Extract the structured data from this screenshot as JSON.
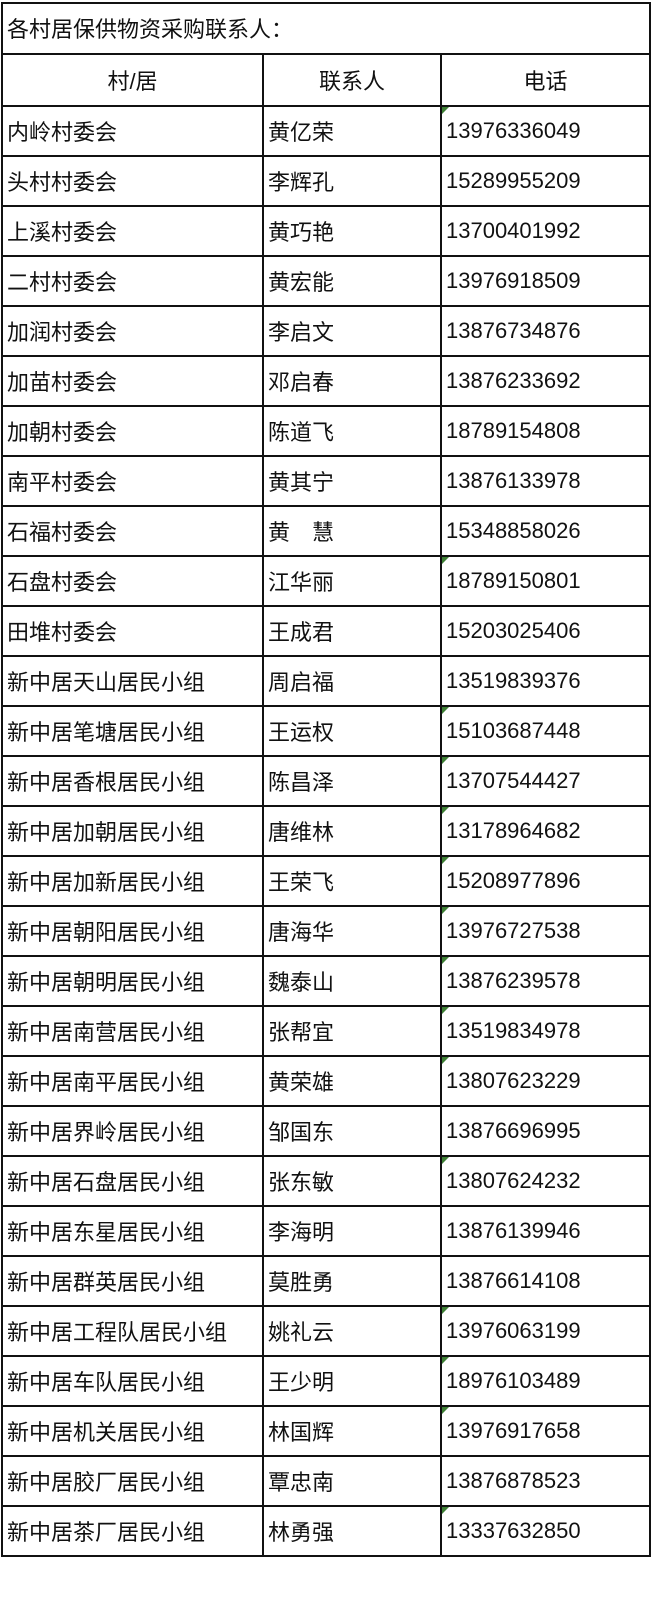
{
  "title": "各村居保供物资采购联系人：",
  "columns": [
    "村/居",
    "联系人",
    "电话"
  ],
  "flag_color": "#3d7f34",
  "rows": [
    {
      "unit": "内岭村委会",
      "contact": "黄亿荣",
      "phone": "13976336049",
      "flag": true
    },
    {
      "unit": "头村村委会",
      "contact": "李辉孔",
      "phone": "15289955209",
      "flag": false
    },
    {
      "unit": "上溪村委会",
      "contact": "黄巧艳",
      "phone": "13700401992",
      "flag": false
    },
    {
      "unit": "二村村委会",
      "contact": "黄宏能",
      "phone": "13976918509",
      "flag": false
    },
    {
      "unit": "加润村委会",
      "contact": "李启文",
      "phone": "13876734876",
      "flag": false
    },
    {
      "unit": "加苗村委会",
      "contact": "邓启春",
      "phone": "13876233692",
      "flag": false
    },
    {
      "unit": "加朝村委会",
      "contact": "陈道飞",
      "phone": "18789154808",
      "flag": false
    },
    {
      "unit": "南平村委会",
      "contact": "黄其宁",
      "phone": "13876133978",
      "flag": false
    },
    {
      "unit": "石福村委会",
      "contact": "黄　慧",
      "phone": "15348858026",
      "flag": false
    },
    {
      "unit": "石盘村委会",
      "contact": "江华丽",
      "phone": "18789150801",
      "flag": true
    },
    {
      "unit": "田堆村委会",
      "contact": "王成君",
      "phone": "15203025406",
      "flag": false
    },
    {
      "unit": "新中居天山居民小组",
      "contact": "周启福",
      "phone": "13519839376",
      "flag": false
    },
    {
      "unit": "新中居笔塘居民小组",
      "contact": "王运权",
      "phone": "15103687448",
      "flag": true
    },
    {
      "unit": "新中居香根居民小组",
      "contact": "陈昌泽",
      "phone": "13707544427",
      "flag": true
    },
    {
      "unit": "新中居加朝居民小组",
      "contact": "唐维林",
      "phone": "13178964682",
      "flag": true
    },
    {
      "unit": "新中居加新居民小组",
      "contact": "王荣飞",
      "phone": "15208977896",
      "flag": true
    },
    {
      "unit": "新中居朝阳居民小组",
      "contact": "唐海华",
      "phone": "13976727538",
      "flag": true
    },
    {
      "unit": "新中居朝明居民小组",
      "contact": "魏泰山",
      "phone": "13876239578",
      "flag": true
    },
    {
      "unit": "新中居南营居民小组",
      "contact": "张帮宜",
      "phone": "13519834978",
      "flag": true
    },
    {
      "unit": "新中居南平居民小组",
      "contact": "黄荣雄",
      "phone": "13807623229",
      "flag": true
    },
    {
      "unit": "新中居界岭居民小组",
      "contact": "邹国东",
      "phone": "13876696995",
      "flag": false
    },
    {
      "unit": "新中居石盘居民小组",
      "contact": "张东敏",
      "phone": "13807624232",
      "flag": true
    },
    {
      "unit": "新中居东星居民小组",
      "contact": "李海明",
      "phone": "13876139946",
      "flag": false
    },
    {
      "unit": "新中居群英居民小组",
      "contact": "莫胜勇",
      "phone": "13876614108",
      "flag": false
    },
    {
      "unit": "新中居工程队居民小组",
      "contact": "姚礼云",
      "phone": "13976063199",
      "flag": true
    },
    {
      "unit": "新中居车队居民小组",
      "contact": "王少明",
      "phone": "18976103489",
      "flag": true
    },
    {
      "unit": "新中居机关居民小组",
      "contact": "林国辉",
      "phone": "13976917658",
      "flag": true
    },
    {
      "unit": "新中居胶厂居民小组",
      "contact": "覃忠南",
      "phone": "13876878523",
      "flag": false
    },
    {
      "unit": "新中居茶厂居民小组",
      "contact": "林勇强",
      "phone": "13337632850",
      "flag": true
    }
  ]
}
